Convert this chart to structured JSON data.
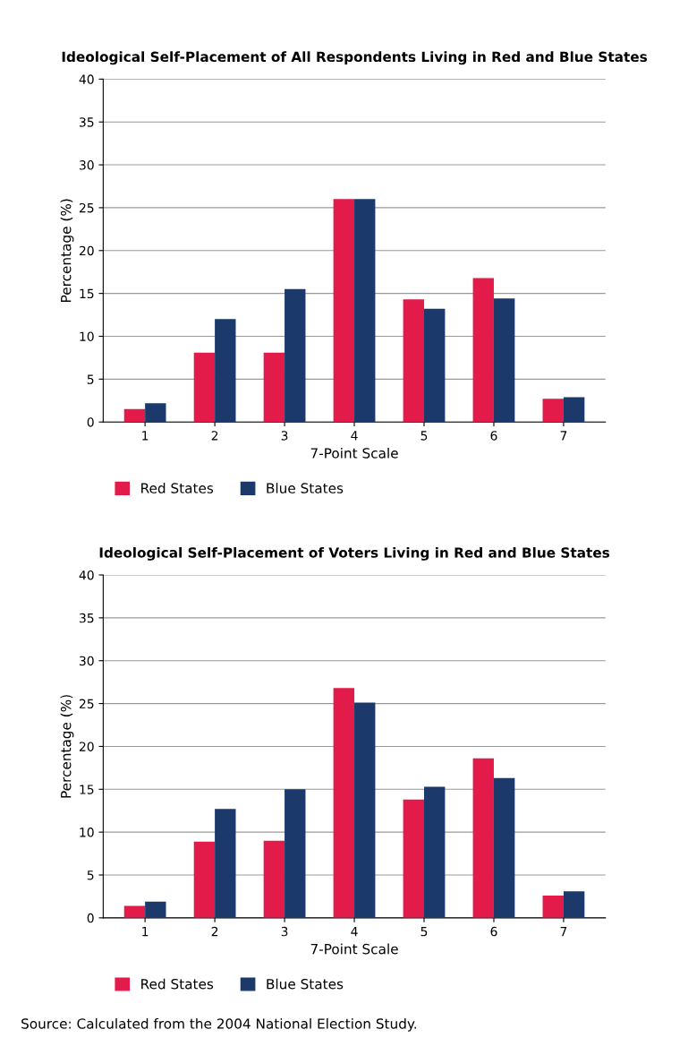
{
  "chart_data": [
    {
      "type": "bar",
      "title": "Ideological Self-Placement of All Respondents Living in Red and Blue States",
      "xlabel": "7-Point Scale",
      "ylabel": "Percentage (%)",
      "categories": [
        "1",
        "2",
        "3",
        "4",
        "5",
        "6",
        "7"
      ],
      "series": [
        {
          "name": "Red States",
          "color": "#e31b4b",
          "values": [
            1.5,
            8.1,
            8.1,
            26,
            14.3,
            16.8,
            2.7
          ]
        },
        {
          "name": "Blue States",
          "color": "#1b3a6b",
          "values": [
            2.2,
            12,
            15.5,
            26,
            13.2,
            14.4,
            2.9
          ]
        }
      ],
      "ylim": [
        0,
        40
      ],
      "yticks": [
        0,
        5,
        10,
        15,
        20,
        25,
        30,
        35,
        40
      ],
      "grid": "y",
      "legend": "bottom"
    },
    {
      "type": "bar",
      "title": "Ideological Self-Placement of Voters Living in Red and Blue States",
      "xlabel": "7-Point Scale",
      "ylabel": "Percentage (%)",
      "categories": [
        "1",
        "2",
        "3",
        "4",
        "5",
        "6",
        "7"
      ],
      "series": [
        {
          "name": "Red States",
          "color": "#e31b4b",
          "values": [
            1.4,
            8.9,
            9.0,
            26.8,
            13.8,
            18.6,
            2.6
          ]
        },
        {
          "name": "Blue States",
          "color": "#1b3a6b",
          "values": [
            1.9,
            12.7,
            15.0,
            25.1,
            15.3,
            16.3,
            3.1
          ]
        }
      ],
      "ylim": [
        0,
        40
      ],
      "yticks": [
        0,
        5,
        10,
        15,
        20,
        25,
        30,
        35,
        40
      ],
      "grid": "y",
      "legend": "bottom",
      "annotations": [
        "Source: Calculated from the 2004 National Election Study."
      ]
    }
  ]
}
